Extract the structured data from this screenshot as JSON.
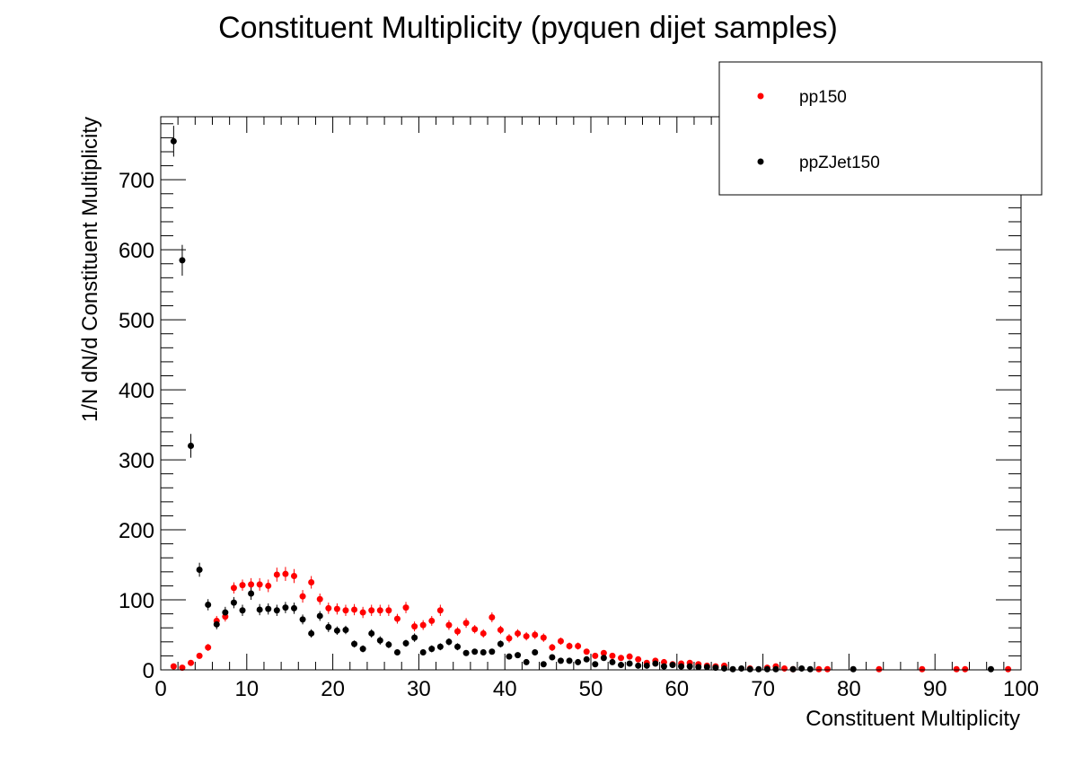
{
  "chart_data": {
    "type": "scatter",
    "title": "Constituent Multiplicity (pyquen dijet samples)",
    "xlabel": "Constituent Multiplicity",
    "ylabel": "1/N dN/d Constituent Multiplicity",
    "xlim": [
      0,
      100
    ],
    "ylim": [
      0,
      790
    ],
    "x_ticks": [
      0,
      10,
      20,
      30,
      40,
      50,
      60,
      70,
      80,
      90,
      100
    ],
    "y_ticks": [
      0,
      100,
      200,
      300,
      400,
      500,
      600,
      700
    ],
    "grid": false,
    "legend_position": "top-right",
    "series": [
      {
        "name": "pp150",
        "color": "#ff0000",
        "points": [
          [
            1.5,
            5,
            3
          ],
          [
            2.5,
            3,
            2
          ],
          [
            3.5,
            10,
            3
          ],
          [
            4.5,
            20,
            4
          ],
          [
            5.5,
            32,
            5
          ],
          [
            6.5,
            70,
            7
          ],
          [
            7.5,
            76,
            7
          ],
          [
            8.5,
            117,
            8
          ],
          [
            9.5,
            121,
            8
          ],
          [
            10.5,
            122,
            9
          ],
          [
            11.5,
            122,
            9
          ],
          [
            12.5,
            120,
            9
          ],
          [
            13.5,
            136,
            10
          ],
          [
            14.5,
            137,
            10
          ],
          [
            15.5,
            134,
            10
          ],
          [
            16.5,
            105,
            9
          ],
          [
            17.5,
            125,
            9
          ],
          [
            18.5,
            101,
            8
          ],
          [
            19.5,
            88,
            8
          ],
          [
            20.5,
            87,
            8
          ],
          [
            21.5,
            85,
            8
          ],
          [
            22.5,
            86,
            8
          ],
          [
            23.5,
            82,
            8
          ],
          [
            24.5,
            85,
            8
          ],
          [
            25.5,
            85,
            8
          ],
          [
            26.5,
            85,
            8
          ],
          [
            27.5,
            73,
            7
          ],
          [
            28.5,
            89,
            8
          ],
          [
            29.5,
            62,
            7
          ],
          [
            30.5,
            64,
            7
          ],
          [
            31.5,
            70,
            7
          ],
          [
            32.5,
            85,
            8
          ],
          [
            33.5,
            64,
            7
          ],
          [
            34.5,
            55,
            6
          ],
          [
            35.5,
            67,
            7
          ],
          [
            36.5,
            58,
            6
          ],
          [
            37.5,
            52,
            6
          ],
          [
            38.5,
            75,
            7
          ],
          [
            39.5,
            57,
            6
          ],
          [
            40.5,
            45,
            6
          ],
          [
            41.5,
            52,
            6
          ],
          [
            42.5,
            48,
            6
          ],
          [
            43.5,
            50,
            6
          ],
          [
            44.5,
            46,
            6
          ],
          [
            45.5,
            32,
            5
          ],
          [
            46.5,
            41,
            5
          ],
          [
            47.5,
            34,
            5
          ],
          [
            48.5,
            34,
            5
          ],
          [
            49.5,
            26,
            4
          ],
          [
            50.5,
            20,
            4
          ],
          [
            51.5,
            24,
            4
          ],
          [
            52.5,
            20,
            4
          ],
          [
            53.5,
            17,
            3
          ],
          [
            54.5,
            19,
            4
          ],
          [
            55.5,
            15,
            3
          ],
          [
            56.5,
            10,
            3
          ],
          [
            57.5,
            13,
            3
          ],
          [
            58.5,
            11,
            3
          ],
          [
            59.5,
            8,
            2
          ],
          [
            60.5,
            9,
            2
          ],
          [
            61.5,
            10,
            3
          ],
          [
            62.5,
            8,
            2
          ],
          [
            63.5,
            6,
            2
          ],
          [
            64.5,
            5,
            2
          ],
          [
            65.5,
            6,
            2
          ],
          [
            68.5,
            2,
            1
          ],
          [
            70.5,
            3,
            1
          ],
          [
            71.5,
            5,
            2
          ],
          [
            72.5,
            2,
            1
          ],
          [
            73.5,
            1,
            1
          ],
          [
            76.5,
            1,
            1
          ],
          [
            77.5,
            1,
            1
          ],
          [
            83.5,
            1,
            1
          ],
          [
            88.5,
            1,
            1
          ],
          [
            92.5,
            1,
            1
          ],
          [
            93.5,
            1,
            1
          ],
          [
            98.5,
            1,
            1
          ]
        ]
      },
      {
        "name": "ppZJet150",
        "color": "#000000",
        "points": [
          [
            1.5,
            755,
            22
          ],
          [
            2.5,
            585,
            22
          ],
          [
            3.5,
            320,
            17
          ],
          [
            4.5,
            143,
            10
          ],
          [
            5.5,
            93,
            8
          ],
          [
            6.5,
            65,
            7
          ],
          [
            7.5,
            82,
            8
          ],
          [
            8.5,
            96,
            8
          ],
          [
            9.5,
            85,
            8
          ],
          [
            10.5,
            109,
            9
          ],
          [
            11.5,
            86,
            8
          ],
          [
            12.5,
            87,
            8
          ],
          [
            13.5,
            85,
            8
          ],
          [
            14.5,
            89,
            8
          ],
          [
            15.5,
            88,
            8
          ],
          [
            16.5,
            72,
            7
          ],
          [
            17.5,
            52,
            6
          ],
          [
            18.5,
            77,
            7
          ],
          [
            19.5,
            61,
            7
          ],
          [
            20.5,
            56,
            6
          ],
          [
            21.5,
            57,
            6
          ],
          [
            22.5,
            37,
            5
          ],
          [
            23.5,
            30,
            5
          ],
          [
            24.5,
            52,
            6
          ],
          [
            25.5,
            42,
            6
          ],
          [
            26.5,
            36,
            5
          ],
          [
            27.5,
            25,
            4
          ],
          [
            28.5,
            38,
            5
          ],
          [
            29.5,
            46,
            6
          ],
          [
            30.5,
            25,
            4
          ],
          [
            31.5,
            30,
            5
          ],
          [
            32.5,
            33,
            5
          ],
          [
            33.5,
            40,
            5
          ],
          [
            34.5,
            33,
            5
          ],
          [
            35.5,
            24,
            4
          ],
          [
            36.5,
            26,
            4
          ],
          [
            37.5,
            25,
            4
          ],
          [
            38.5,
            26,
            4
          ],
          [
            39.5,
            37,
            5
          ],
          [
            40.5,
            19,
            4
          ],
          [
            41.5,
            21,
            4
          ],
          [
            42.5,
            11,
            3
          ],
          [
            43.5,
            25,
            4
          ],
          [
            44.5,
            8,
            2
          ],
          [
            45.5,
            18,
            4
          ],
          [
            46.5,
            13,
            3
          ],
          [
            47.5,
            13,
            3
          ],
          [
            48.5,
            11,
            3
          ],
          [
            49.5,
            15,
            3
          ],
          [
            50.5,
            8,
            2
          ],
          [
            51.5,
            17,
            3
          ],
          [
            52.5,
            11,
            3
          ],
          [
            53.5,
            7,
            2
          ],
          [
            54.5,
            9,
            2
          ],
          [
            55.5,
            6,
            2
          ],
          [
            56.5,
            6,
            2
          ],
          [
            57.5,
            9,
            2
          ],
          [
            58.5,
            5,
            2
          ],
          [
            59.5,
            7,
            2
          ],
          [
            60.5,
            5,
            2
          ],
          [
            61.5,
            5,
            2
          ],
          [
            62.5,
            4,
            2
          ],
          [
            63.5,
            4,
            2
          ],
          [
            64.5,
            3,
            1
          ],
          [
            65.5,
            2,
            1
          ],
          [
            66.5,
            1,
            1
          ],
          [
            67.5,
            2,
            1
          ],
          [
            68.5,
            1,
            1
          ],
          [
            69.5,
            1,
            1
          ],
          [
            70.5,
            1,
            1
          ],
          [
            71.5,
            1,
            1
          ],
          [
            73.5,
            1,
            1
          ],
          [
            74.5,
            2,
            1
          ],
          [
            75.5,
            1,
            1
          ],
          [
            80.5,
            1,
            1
          ],
          [
            96.5,
            1,
            1
          ]
        ]
      }
    ]
  }
}
